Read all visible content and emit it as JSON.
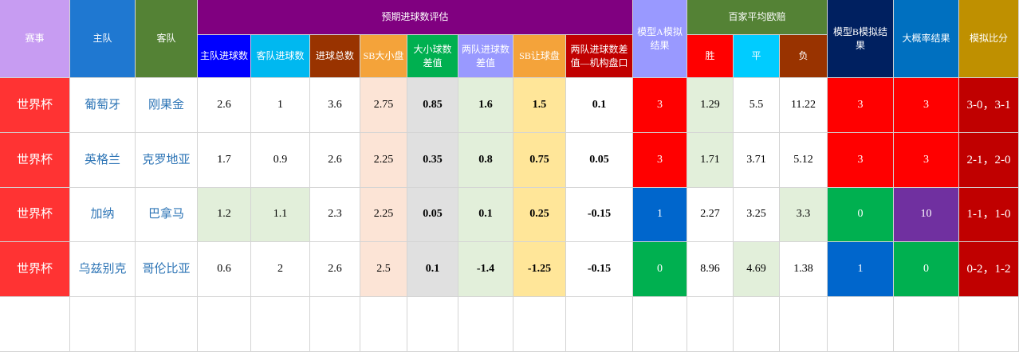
{
  "header": {
    "match": "赛事",
    "home": "主队",
    "away": "客队",
    "expected_group": "预期进球数评估",
    "expected_cols": [
      "主队进球数",
      "客队进球数",
      "进球总数",
      "SB大小盘",
      "大小球数差值",
      "两队进球数差值",
      "SB让球盘",
      "两队进球数差值—机构盘口"
    ],
    "model_a": "模型A模拟结果",
    "odds_group": "百家平均欧赔",
    "odds_cols": [
      "胜",
      "平",
      "负"
    ],
    "model_b": "模型B模拟结果",
    "likely": "大概率结果",
    "score": "模拟比分"
  },
  "rows": [
    [
      "世界杯",
      "葡萄牙",
      "刚果金",
      2.6,
      1,
      3.6,
      2.75,
      0.85,
      1.6,
      1.5,
      0.1,
      3,
      1.29,
      5.5,
      11.22,
      3,
      3,
      "3-0，3-1"
    ],
    [
      "世界杯",
      "英格兰",
      "克罗地亚",
      1.7,
      0.9,
      2.6,
      2.25,
      0.35,
      0.8,
      0.75,
      0.05,
      3,
      1.71,
      3.71,
      5.12,
      3,
      3,
      "2-1，2-0"
    ],
    [
      "世界杯",
      "加纳",
      "巴拿马",
      1.2,
      1.1,
      2.3,
      2.25,
      0.05,
      0.1,
      0.25,
      -0.15,
      1,
      2.27,
      3.25,
      3.3,
      0,
      10,
      "1-1，1-0"
    ],
    [
      "世界杯",
      "乌兹别克",
      "哥伦比亚",
      0.6,
      2,
      2.6,
      2.5,
      0.1,
      -1.4,
      -1.25,
      -0.15,
      0,
      8.96,
      4.69,
      1.38,
      1,
      0,
      "0-2，1-2"
    ]
  ]
}
